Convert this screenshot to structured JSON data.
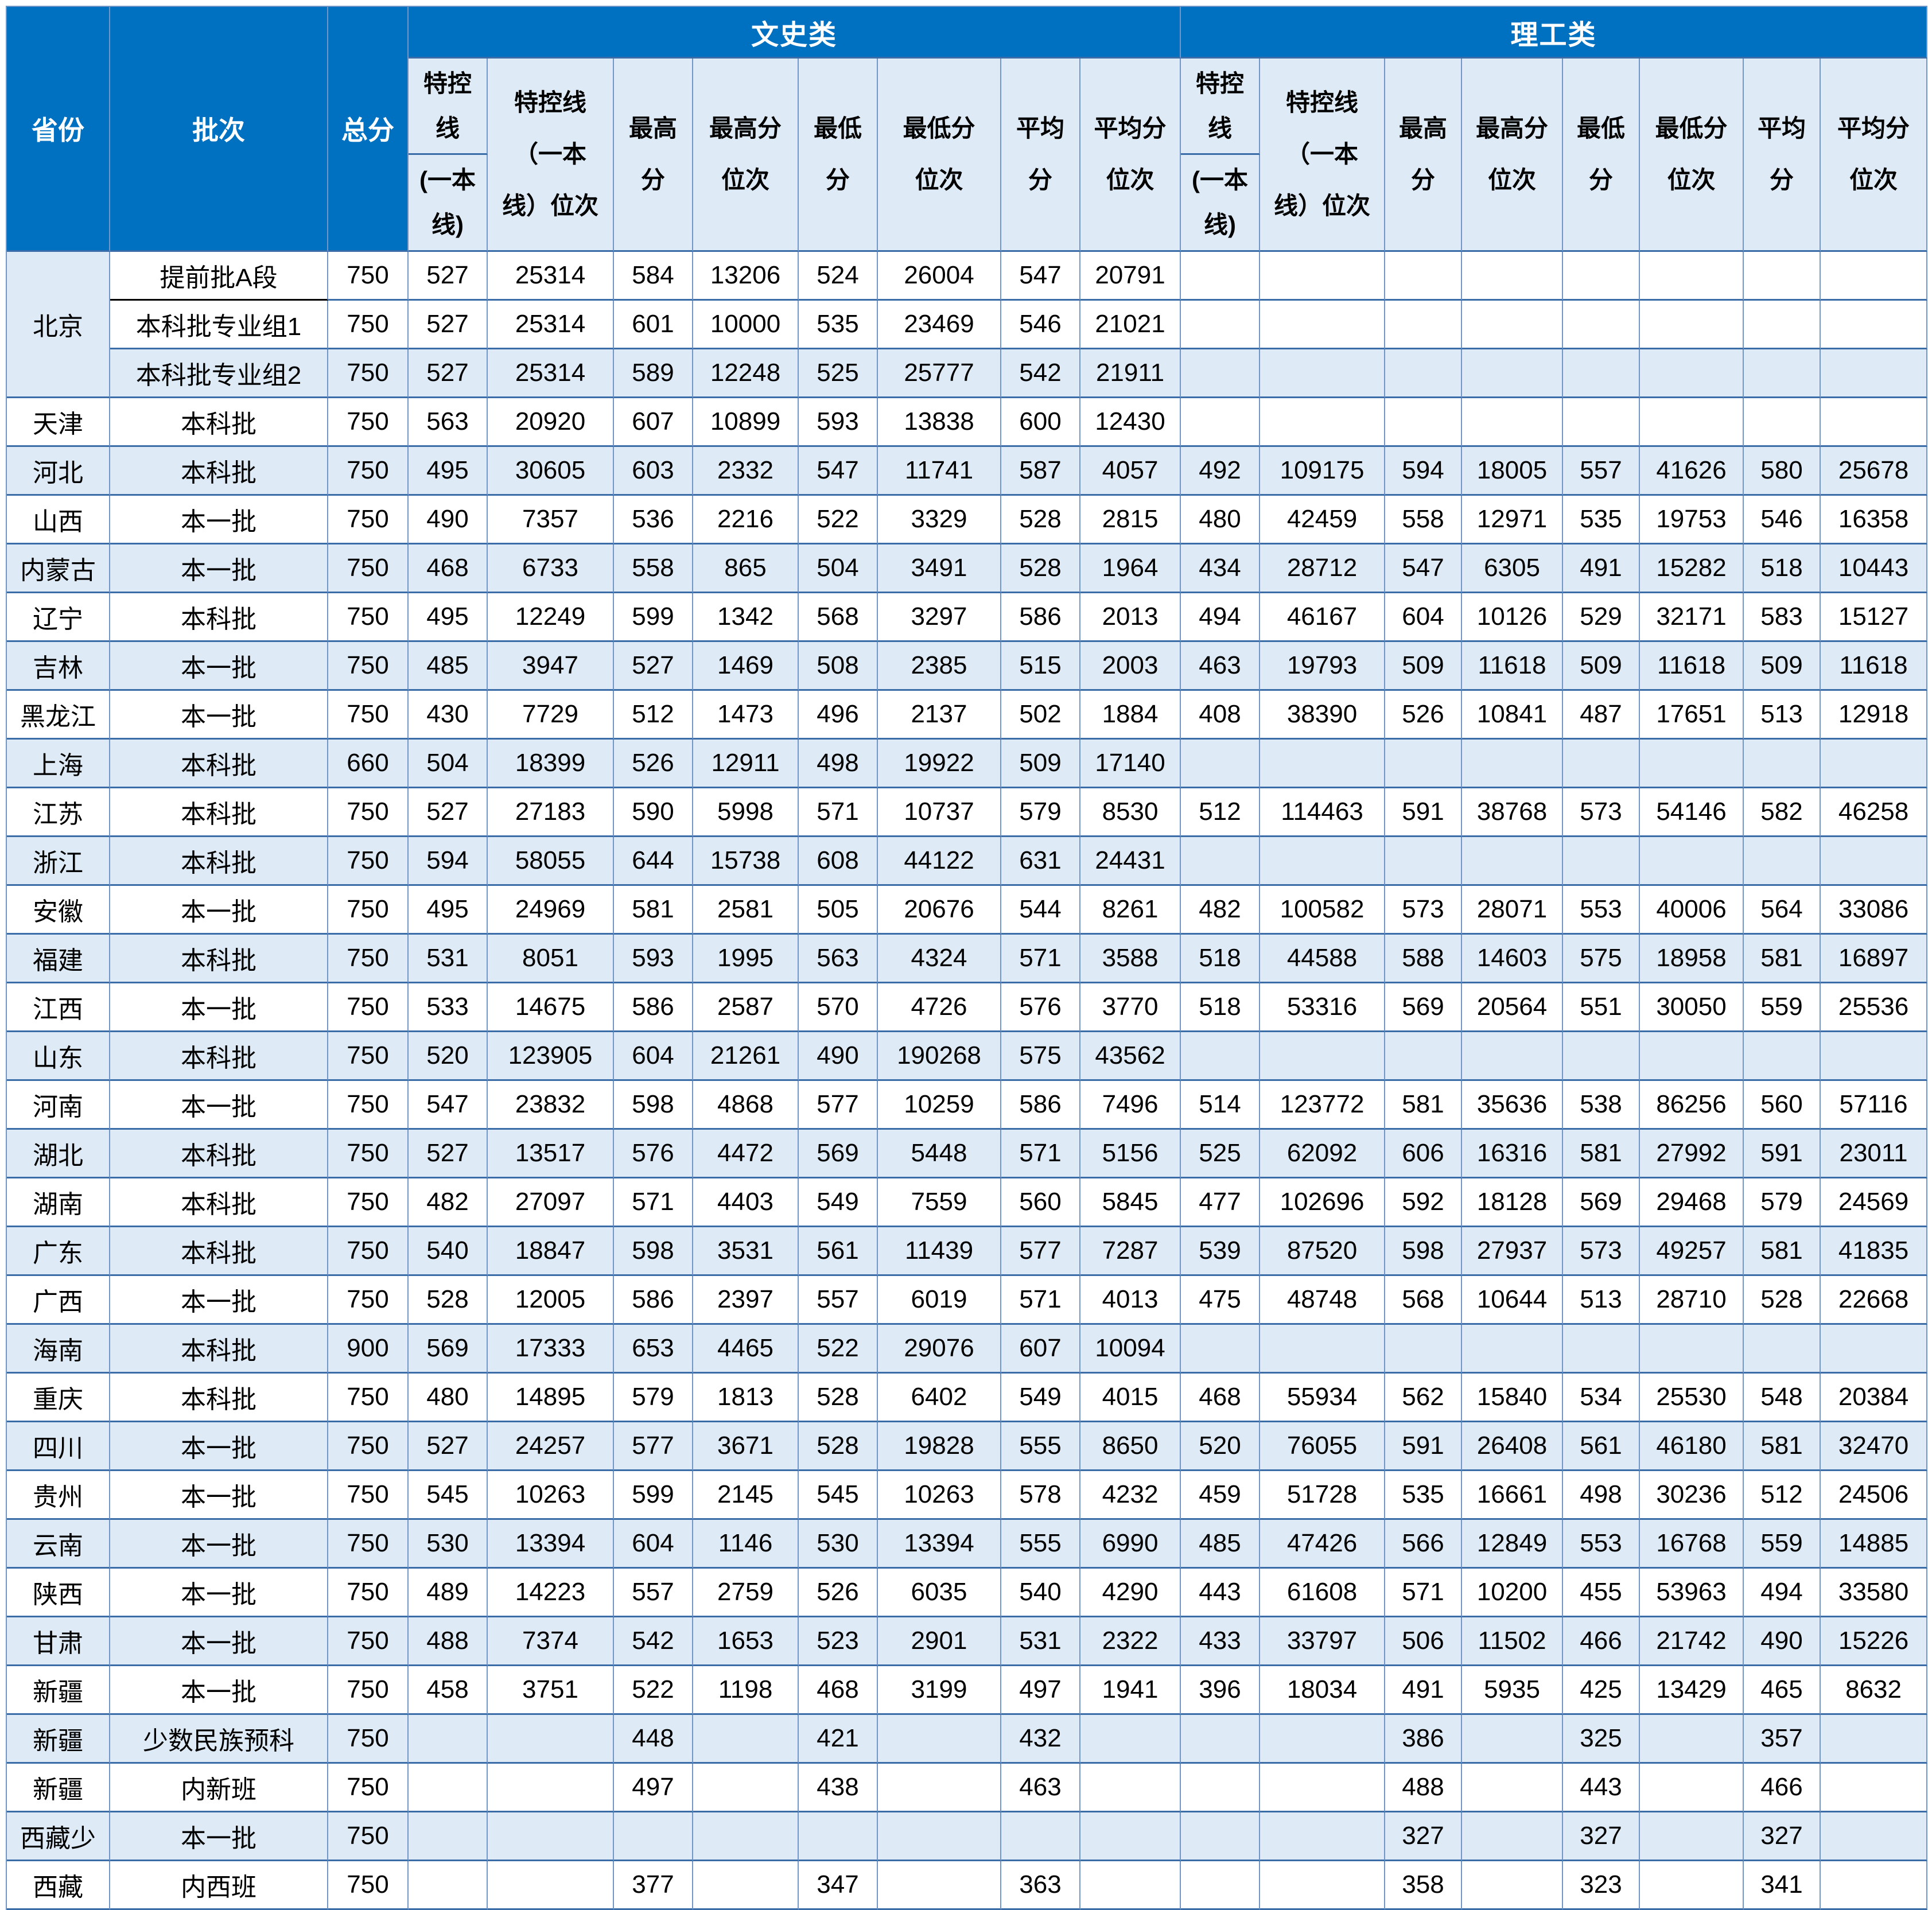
{
  "colors": {
    "header_bg": "#0070C0",
    "header_text": "#FFFFFF",
    "subheader_bg": "#DEEBF7",
    "stripe_bg": "#DEEBF7",
    "row_bg": "#FFFFFF",
    "grid_vertical": "#7396C8",
    "grid_horizontal": "#3A6CA8",
    "data_text": "#000000"
  },
  "table": {
    "header": {
      "province": "省份",
      "batch": "批次",
      "total": "总分",
      "groups": [
        "文史类",
        "理工类"
      ],
      "sub_line_top": "特控线",
      "sub_line_bottom": "(一本线)",
      "sub_rank": "特控线（一本线）位次",
      "sub_cols": [
        "最高分",
        "最高分位次",
        "最低分",
        "最低分位次",
        "平均分",
        "平均分位次"
      ]
    },
    "rows": [
      {
        "province": "北京",
        "rowspan": 3,
        "batch": "提前批A段",
        "total": "750",
        "ws": [
          "527",
          "25314",
          "584",
          "13206",
          "524",
          "26004",
          "547",
          "20791"
        ],
        "lg": [
          "",
          "",
          "",
          "",
          "",
          "",
          "",
          ""
        ]
      },
      {
        "province": null,
        "batch": "本科批专业组1",
        "total": "750",
        "ws": [
          "527",
          "25314",
          "601",
          "10000",
          "535",
          "23469",
          "546",
          "21021"
        ],
        "lg": [
          "",
          "",
          "",
          "",
          "",
          "",
          "",
          ""
        ]
      },
      {
        "province": null,
        "batch": "本科批专业组2",
        "total": "750",
        "ws": [
          "527",
          "25314",
          "589",
          "12248",
          "525",
          "25777",
          "542",
          "21911"
        ],
        "lg": [
          "",
          "",
          "",
          "",
          "",
          "",
          "",
          ""
        ]
      },
      {
        "province": "天津",
        "batch": "本科批",
        "total": "750",
        "ws": [
          "563",
          "20920",
          "607",
          "10899",
          "593",
          "13838",
          "600",
          "12430"
        ],
        "lg": [
          "",
          "",
          "",
          "",
          "",
          "",
          "",
          ""
        ]
      },
      {
        "province": "河北",
        "batch": "本科批",
        "total": "750",
        "ws": [
          "495",
          "30605",
          "603",
          "2332",
          "547",
          "11741",
          "587",
          "4057"
        ],
        "lg": [
          "492",
          "109175",
          "594",
          "18005",
          "557",
          "41626",
          "580",
          "25678"
        ]
      },
      {
        "province": "山西",
        "batch": "本一批",
        "total": "750",
        "ws": [
          "490",
          "7357",
          "536",
          "2216",
          "522",
          "3329",
          "528",
          "2815"
        ],
        "lg": [
          "480",
          "42459",
          "558",
          "12971",
          "535",
          "19753",
          "546",
          "16358"
        ]
      },
      {
        "province": "内蒙古",
        "batch": "本一批",
        "total": "750",
        "ws": [
          "468",
          "6733",
          "558",
          "865",
          "504",
          "3491",
          "528",
          "1964"
        ],
        "lg": [
          "434",
          "28712",
          "547",
          "6305",
          "491",
          "15282",
          "518",
          "10443"
        ]
      },
      {
        "province": "辽宁",
        "batch": "本科批",
        "total": "750",
        "ws": [
          "495",
          "12249",
          "599",
          "1342",
          "568",
          "3297",
          "586",
          "2013"
        ],
        "lg": [
          "494",
          "46167",
          "604",
          "10126",
          "529",
          "32171",
          "583",
          "15127"
        ]
      },
      {
        "province": "吉林",
        "batch": "本一批",
        "total": "750",
        "ws": [
          "485",
          "3947",
          "527",
          "1469",
          "508",
          "2385",
          "515",
          "2003"
        ],
        "lg": [
          "463",
          "19793",
          "509",
          "11618",
          "509",
          "11618",
          "509",
          "11618"
        ]
      },
      {
        "province": "黑龙江",
        "batch": "本一批",
        "total": "750",
        "ws": [
          "430",
          "7729",
          "512",
          "1473",
          "496",
          "2137",
          "502",
          "1884"
        ],
        "lg": [
          "408",
          "38390",
          "526",
          "10841",
          "487",
          "17651",
          "513",
          "12918"
        ]
      },
      {
        "province": "上海",
        "batch": "本科批",
        "total": "660",
        "ws": [
          "504",
          "18399",
          "526",
          "12911",
          "498",
          "19922",
          "509",
          "17140"
        ],
        "lg": [
          "",
          "",
          "",
          "",
          "",
          "",
          "",
          ""
        ]
      },
      {
        "province": "江苏",
        "batch": "本科批",
        "total": "750",
        "ws": [
          "527",
          "27183",
          "590",
          "5998",
          "571",
          "10737",
          "579",
          "8530"
        ],
        "lg": [
          "512",
          "114463",
          "591",
          "38768",
          "573",
          "54146",
          "582",
          "46258"
        ]
      },
      {
        "province": "浙江",
        "batch": "本科批",
        "total": "750",
        "ws": [
          "594",
          "58055",
          "644",
          "15738",
          "608",
          "44122",
          "631",
          "24431"
        ],
        "lg": [
          "",
          "",
          "",
          "",
          "",
          "",
          "",
          ""
        ]
      },
      {
        "province": "安徽",
        "batch": "本一批",
        "total": "750",
        "ws": [
          "495",
          "24969",
          "581",
          "2581",
          "505",
          "20676",
          "544",
          "8261"
        ],
        "lg": [
          "482",
          "100582",
          "573",
          "28071",
          "553",
          "40006",
          "564",
          "33086"
        ]
      },
      {
        "province": "福建",
        "batch": "本科批",
        "total": "750",
        "ws": [
          "531",
          "8051",
          "593",
          "1995",
          "563",
          "4324",
          "571",
          "3588"
        ],
        "lg": [
          "518",
          "44588",
          "588",
          "14603",
          "575",
          "18958",
          "581",
          "16897"
        ]
      },
      {
        "province": "江西",
        "batch": "本一批",
        "total": "750",
        "ws": [
          "533",
          "14675",
          "586",
          "2587",
          "570",
          "4726",
          "576",
          "3770"
        ],
        "lg": [
          "518",
          "53316",
          "569",
          "20564",
          "551",
          "30050",
          "559",
          "25536"
        ]
      },
      {
        "province": "山东",
        "batch": "本科批",
        "total": "750",
        "ws": [
          "520",
          "123905",
          "604",
          "21261",
          "490",
          "190268",
          "575",
          "43562"
        ],
        "lg": [
          "",
          "",
          "",
          "",
          "",
          "",
          "",
          ""
        ]
      },
      {
        "province": "河南",
        "batch": "本一批",
        "total": "750",
        "ws": [
          "547",
          "23832",
          "598",
          "4868",
          "577",
          "10259",
          "586",
          "7496"
        ],
        "lg": [
          "514",
          "123772",
          "581",
          "35636",
          "538",
          "86256",
          "560",
          "57116"
        ]
      },
      {
        "province": "湖北",
        "batch": "本科批",
        "total": "750",
        "ws": [
          "527",
          "13517",
          "576",
          "4472",
          "569",
          "5448",
          "571",
          "5156"
        ],
        "lg": [
          "525",
          "62092",
          "606",
          "16316",
          "581",
          "27992",
          "591",
          "23011"
        ]
      },
      {
        "province": "湖南",
        "batch": "本科批",
        "total": "750",
        "ws": [
          "482",
          "27097",
          "571",
          "4403",
          "549",
          "7559",
          "560",
          "5845"
        ],
        "lg": [
          "477",
          "102696",
          "592",
          "18128",
          "569",
          "29468",
          "579",
          "24569"
        ]
      },
      {
        "province": "广东",
        "batch": "本科批",
        "total": "750",
        "ws": [
          "540",
          "18847",
          "598",
          "3531",
          "561",
          "11439",
          "577",
          "7287"
        ],
        "lg": [
          "539",
          "87520",
          "598",
          "27937",
          "573",
          "49257",
          "581",
          "41835"
        ]
      },
      {
        "province": "广西",
        "batch": "本一批",
        "total": "750",
        "ws": [
          "528",
          "12005",
          "586",
          "2397",
          "557",
          "6019",
          "571",
          "4013"
        ],
        "lg": [
          "475",
          "48748",
          "568",
          "10644",
          "513",
          "28710",
          "528",
          "22668"
        ]
      },
      {
        "province": "海南",
        "batch": "本科批",
        "total": "900",
        "ws": [
          "569",
          "17333",
          "653",
          "4465",
          "522",
          "29076",
          "607",
          "10094"
        ],
        "lg": [
          "",
          "",
          "",
          "",
          "",
          "",
          "",
          ""
        ]
      },
      {
        "province": "重庆",
        "batch": "本科批",
        "total": "750",
        "ws": [
          "480",
          "14895",
          "579",
          "1813",
          "528",
          "6402",
          "549",
          "4015"
        ],
        "lg": [
          "468",
          "55934",
          "562",
          "15840",
          "534",
          "25530",
          "548",
          "20384"
        ]
      },
      {
        "province": "四川",
        "batch": "本一批",
        "total": "750",
        "ws": [
          "527",
          "24257",
          "577",
          "3671",
          "528",
          "19828",
          "555",
          "8650"
        ],
        "lg": [
          "520",
          "76055",
          "591",
          "26408",
          "561",
          "46180",
          "581",
          "32470"
        ]
      },
      {
        "province": "贵州",
        "batch": "本一批",
        "total": "750",
        "ws": [
          "545",
          "10263",
          "599",
          "2145",
          "545",
          "10263",
          "578",
          "4232"
        ],
        "lg": [
          "459",
          "51728",
          "535",
          "16661",
          "498",
          "30236",
          "512",
          "24506"
        ]
      },
      {
        "province": "云南",
        "batch": "本一批",
        "total": "750",
        "ws": [
          "530",
          "13394",
          "604",
          "1146",
          "530",
          "13394",
          "555",
          "6990"
        ],
        "lg": [
          "485",
          "47426",
          "566",
          "12849",
          "553",
          "16768",
          "559",
          "14885"
        ]
      },
      {
        "province": "陕西",
        "batch": "本一批",
        "total": "750",
        "ws": [
          "489",
          "14223",
          "557",
          "2759",
          "526",
          "6035",
          "540",
          "4290"
        ],
        "lg": [
          "443",
          "61608",
          "571",
          "10200",
          "455",
          "53963",
          "494",
          "33580"
        ]
      },
      {
        "province": "甘肃",
        "batch": "本一批",
        "total": "750",
        "ws": [
          "488",
          "7374",
          "542",
          "1653",
          "523",
          "2901",
          "531",
          "2322"
        ],
        "lg": [
          "433",
          "33797",
          "506",
          "11502",
          "466",
          "21742",
          "490",
          "15226"
        ]
      },
      {
        "province": "新疆",
        "batch": "本一批",
        "total": "750",
        "ws": [
          "458",
          "3751",
          "522",
          "1198",
          "468",
          "3199",
          "497",
          "1941"
        ],
        "lg": [
          "396",
          "18034",
          "491",
          "5935",
          "425",
          "13429",
          "465",
          "8632"
        ]
      },
      {
        "province": "新疆",
        "batch": "少数民族预科",
        "total": "750",
        "ws": [
          "",
          "",
          "448",
          "",
          "421",
          "",
          "432",
          ""
        ],
        "lg": [
          "",
          "",
          "386",
          "",
          "325",
          "",
          "357",
          ""
        ]
      },
      {
        "province": "新疆",
        "batch": "内新班",
        "total": "750",
        "ws": [
          "",
          "",
          "497",
          "",
          "438",
          "",
          "463",
          ""
        ],
        "lg": [
          "",
          "",
          "488",
          "",
          "443",
          "",
          "466",
          ""
        ]
      },
      {
        "province": "西藏少",
        "batch": "本一批",
        "total": "750",
        "ws": [
          "",
          "",
          "",
          "",
          "",
          "",
          "",
          ""
        ],
        "lg": [
          "",
          "",
          "327",
          "",
          "327",
          "",
          "327",
          ""
        ]
      },
      {
        "province": "西藏",
        "batch": "内西班",
        "total": "750",
        "ws": [
          "",
          "",
          "377",
          "",
          "347",
          "",
          "363",
          ""
        ],
        "lg": [
          "",
          "",
          "358",
          "",
          "323",
          "",
          "341",
          ""
        ]
      }
    ]
  }
}
